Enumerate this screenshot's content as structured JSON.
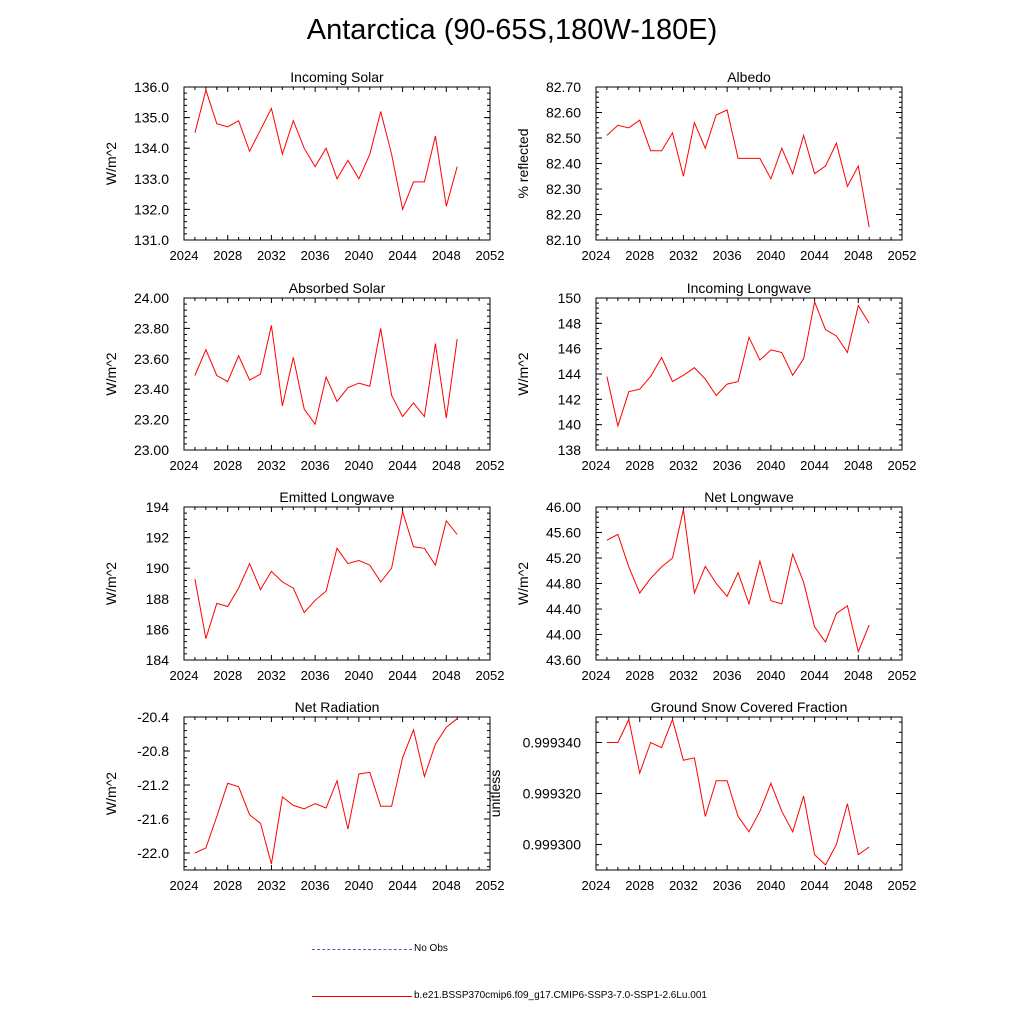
{
  "title": "Antarctica (90-65S,180W-180E)",
  "legend": [
    {
      "label": "No Obs",
      "color": "#5a5ab4",
      "style": "dashed"
    },
    {
      "label": "b.e21.BSSP370cmip6.f09_g17.CMIP6-SSP3-7.0-SSP1-2.6Lu.001",
      "color": "#ff0000",
      "style": "solid"
    }
  ],
  "chart_data": [
    {
      "type": "line",
      "title": "Incoming Solar",
      "ylabel": "W/m^2",
      "xlim": [
        2024,
        2052
      ],
      "ylim": [
        131.0,
        136.0
      ],
      "xticks": [
        "2024",
        "2028",
        "2032",
        "2036",
        "2040",
        "2044",
        "2048",
        "2052"
      ],
      "yticks": [
        "131.0",
        "132.0",
        "133.0",
        "134.0",
        "135.0",
        "136.0"
      ],
      "x": [
        2025,
        2026,
        2027,
        2028,
        2029,
        2030,
        2031,
        2032,
        2033,
        2034,
        2035,
        2036,
        2037,
        2038,
        2039,
        2040,
        2041,
        2042,
        2043,
        2044,
        2045,
        2046,
        2047,
        2048,
        2049
      ],
      "series": [
        {
          "name": "b.e21.BSSP370cmip6.f09_g17.CMIP6-SSP3-7.0-SSP1-2.6Lu.001",
          "color": "#ff0000",
          "values": [
            134.5,
            135.9,
            134.8,
            134.7,
            134.9,
            133.9,
            134.6,
            135.3,
            133.8,
            134.9,
            134.0,
            133.4,
            134.0,
            133.0,
            133.6,
            133.0,
            133.8,
            135.2,
            133.8,
            132.0,
            132.9,
            132.9,
            134.4,
            132.1,
            133.4
          ]
        }
      ]
    },
    {
      "type": "line",
      "title": "Albedo",
      "ylabel": "% reflected",
      "xlim": [
        2024,
        2052
      ],
      "ylim": [
        82.1,
        82.7
      ],
      "xticks": [
        "2024",
        "2028",
        "2032",
        "2036",
        "2040",
        "2044",
        "2048",
        "2052"
      ],
      "yticks": [
        "82.10",
        "82.20",
        "82.30",
        "82.40",
        "82.50",
        "82.60",
        "82.70"
      ],
      "x": [
        2025,
        2026,
        2027,
        2028,
        2029,
        2030,
        2031,
        2032,
        2033,
        2034,
        2035,
        2036,
        2037,
        2038,
        2039,
        2040,
        2041,
        2042,
        2043,
        2044,
        2045,
        2046,
        2047,
        2048,
        2049
      ],
      "series": [
        {
          "name": "b.e21.BSSP370cmip6.f09_g17.CMIP6-SSP3-7.0-SSP1-2.6Lu.001",
          "color": "#ff0000",
          "values": [
            82.51,
            82.55,
            82.54,
            82.57,
            82.45,
            82.45,
            82.52,
            82.35,
            82.56,
            82.46,
            82.59,
            82.61,
            82.42,
            82.42,
            82.42,
            82.34,
            82.46,
            82.36,
            82.51,
            82.36,
            82.39,
            82.48,
            82.31,
            82.39,
            82.15
          ]
        }
      ]
    },
    {
      "type": "line",
      "title": "Absorbed Solar",
      "ylabel": "W/m^2",
      "xlim": [
        2024,
        2052
      ],
      "ylim": [
        23.0,
        24.0
      ],
      "xticks": [
        "2024",
        "2028",
        "2032",
        "2036",
        "2040",
        "2044",
        "2048",
        "2052"
      ],
      "yticks": [
        "23.00",
        "23.20",
        "23.40",
        "23.60",
        "23.80",
        "24.00"
      ],
      "x": [
        2025,
        2026,
        2027,
        2028,
        2029,
        2030,
        2031,
        2032,
        2033,
        2034,
        2035,
        2036,
        2037,
        2038,
        2039,
        2040,
        2041,
        2042,
        2043,
        2044,
        2045,
        2046,
        2047,
        2048,
        2049
      ],
      "series": [
        {
          "name": "b.e21.BSSP370cmip6.f09_g17.CMIP6-SSP3-7.0-SSP1-2.6Lu.001",
          "color": "#ff0000",
          "values": [
            23.49,
            23.66,
            23.49,
            23.45,
            23.62,
            23.46,
            23.5,
            23.82,
            23.29,
            23.61,
            23.27,
            23.17,
            23.48,
            23.32,
            23.41,
            23.44,
            23.42,
            23.8,
            23.36,
            23.22,
            23.31,
            23.22,
            23.7,
            23.21,
            23.73
          ]
        }
      ]
    },
    {
      "type": "line",
      "title": "Incoming Longwave",
      "ylabel": "W/m^2",
      "xlim": [
        2024,
        2052
      ],
      "ylim": [
        138,
        150
      ],
      "xticks": [
        "2024",
        "2028",
        "2032",
        "2036",
        "2040",
        "2044",
        "2048",
        "2052"
      ],
      "yticks": [
        "138",
        "140",
        "142",
        "144",
        "146",
        "148",
        "150"
      ],
      "x": [
        2025,
        2026,
        2027,
        2028,
        2029,
        2030,
        2031,
        2032,
        2033,
        2034,
        2035,
        2036,
        2037,
        2038,
        2039,
        2040,
        2041,
        2042,
        2043,
        2044,
        2045,
        2046,
        2047,
        2048,
        2049
      ],
      "series": [
        {
          "name": "b.e21.BSSP370cmip6.f09_g17.CMIP6-SSP3-7.0-SSP1-2.6Lu.001",
          "color": "#ff0000",
          "values": [
            143.8,
            139.9,
            142.6,
            142.8,
            143.8,
            145.3,
            143.4,
            143.9,
            144.5,
            143.6,
            142.3,
            143.2,
            143.4,
            146.9,
            145.1,
            145.9,
            145.7,
            143.9,
            145.2,
            149.7,
            147.5,
            147.0,
            145.7,
            149.4,
            148.0
          ]
        }
      ]
    },
    {
      "type": "line",
      "title": "Emitted Longwave",
      "ylabel": "W/m^2",
      "xlim": [
        2024,
        2052
      ],
      "ylim": [
        184,
        194
      ],
      "xticks": [
        "2024",
        "2028",
        "2032",
        "2036",
        "2040",
        "2044",
        "2048",
        "2052"
      ],
      "yticks": [
        "184",
        "186",
        "188",
        "190",
        "192",
        "194"
      ],
      "x": [
        2025,
        2026,
        2027,
        2028,
        2029,
        2030,
        2031,
        2032,
        2033,
        2034,
        2035,
        2036,
        2037,
        2038,
        2039,
        2040,
        2041,
        2042,
        2043,
        2044,
        2045,
        2046,
        2047,
        2048,
        2049
      ],
      "series": [
        {
          "name": "b.e21.BSSP370cmip6.f09_g17.CMIP6-SSP3-7.0-SSP1-2.6Lu.001",
          "color": "#ff0000",
          "values": [
            189.3,
            185.4,
            187.7,
            187.5,
            188.7,
            190.3,
            188.6,
            189.8,
            189.1,
            188.7,
            187.1,
            187.9,
            188.5,
            191.3,
            190.3,
            190.5,
            190.2,
            189.1,
            190.0,
            193.7,
            191.4,
            191.3,
            190.2,
            193.1,
            192.2
          ]
        }
      ]
    },
    {
      "type": "line",
      "title": "Net Longwave",
      "ylabel": "W/m^2",
      "xlim": [
        2024,
        2052
      ],
      "ylim": [
        43.6,
        46.0
      ],
      "xticks": [
        "2024",
        "2028",
        "2032",
        "2036",
        "2040",
        "2044",
        "2048",
        "2052"
      ],
      "yticks": [
        "43.60",
        "44.00",
        "44.40",
        "44.80",
        "45.20",
        "45.60",
        "46.00"
      ],
      "x": [
        2025,
        2026,
        2027,
        2028,
        2029,
        2030,
        2031,
        2032,
        2033,
        2034,
        2035,
        2036,
        2037,
        2038,
        2039,
        2040,
        2041,
        2042,
        2043,
        2044,
        2045,
        2046,
        2047,
        2048,
        2049
      ],
      "series": [
        {
          "name": "b.e21.BSSP370cmip6.f09_g17.CMIP6-SSP3-7.0-SSP1-2.6Lu.001",
          "color": "#ff0000",
          "values": [
            45.48,
            45.57,
            45.06,
            44.65,
            44.88,
            45.06,
            45.2,
            45.96,
            44.65,
            45.07,
            44.8,
            44.6,
            44.97,
            44.48,
            45.15,
            44.53,
            44.48,
            45.26,
            44.82,
            44.12,
            43.88,
            44.33,
            44.45,
            43.73,
            44.15
          ]
        }
      ]
    },
    {
      "type": "line",
      "title": "Net Radiation",
      "ylabel": "W/m^2",
      "xlim": [
        2024,
        2052
      ],
      "ylim": [
        -22.2,
        -20.4
      ],
      "xticks": [
        "2024",
        "2028",
        "2032",
        "2036",
        "2040",
        "2044",
        "2048",
        "2052"
      ],
      "yticks": [
        "-22.0",
        "-21.6",
        "-21.2",
        "-20.8",
        "-20.4"
      ],
      "x": [
        2025,
        2026,
        2027,
        2028,
        2029,
        2030,
        2031,
        2032,
        2033,
        2034,
        2035,
        2036,
        2037,
        2038,
        2039,
        2040,
        2041,
        2042,
        2043,
        2044,
        2045,
        2046,
        2047,
        2048,
        2049
      ],
      "series": [
        {
          "name": "b.e21.BSSP370cmip6.f09_g17.CMIP6-SSP3-7.0-SSP1-2.6Lu.001",
          "color": "#ff0000",
          "values": [
            -22.0,
            -21.94,
            -21.57,
            -21.18,
            -21.22,
            -21.55,
            -21.65,
            -22.13,
            -21.34,
            -21.44,
            -21.48,
            -21.42,
            -21.47,
            -21.15,
            -21.72,
            -21.07,
            -21.05,
            -21.45,
            -21.45,
            -20.88,
            -20.55,
            -21.1,
            -20.72,
            -20.52,
            -20.42
          ]
        }
      ]
    },
    {
      "type": "line",
      "title": "Ground Snow Covered Fraction",
      "ylabel": "unitless",
      "xlim": [
        2024,
        2052
      ],
      "ylim": [
        0.99929,
        0.99935
      ],
      "xticks": [
        "2024",
        "2028",
        "2032",
        "2036",
        "2040",
        "2044",
        "2048",
        "2052"
      ],
      "yticks": [
        "0.999300",
        "0.999320",
        "0.999340"
      ],
      "x": [
        2025,
        2026,
        2027,
        2028,
        2029,
        2030,
        2031,
        2032,
        2033,
        2034,
        2035,
        2036,
        2037,
        2038,
        2039,
        2040,
        2041,
        2042,
        2043,
        2044,
        2045,
        2046,
        2047,
        2048,
        2049
      ],
      "series": [
        {
          "name": "b.e21.BSSP370cmip6.f09_g17.CMIP6-SSP3-7.0-SSP1-2.6Lu.001",
          "color": "#ff0000",
          "values": [
            0.99934,
            0.99934,
            0.999349,
            0.999328,
            0.99934,
            0.999338,
            0.999349,
            0.999333,
            0.999334,
            0.999311,
            0.999325,
            0.999325,
            0.999311,
            0.999305,
            0.999313,
            0.999324,
            0.999313,
            0.999305,
            0.999319,
            0.999296,
            0.999292,
            0.9993,
            0.999316,
            0.999296,
            0.999299
          ]
        }
      ]
    }
  ]
}
